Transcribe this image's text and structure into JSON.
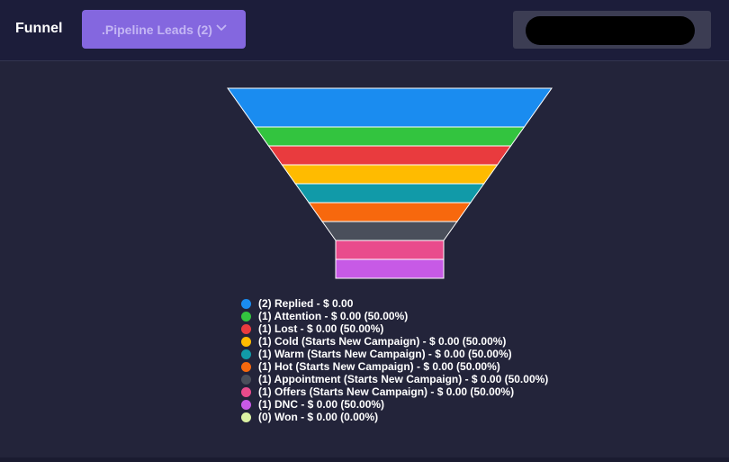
{
  "header": {
    "title": "Funnel",
    "pipeline_label": ".Pipeline Leads (2)"
  },
  "chart_data": {
    "type": "funnel",
    "series": [
      {
        "name": "Replied",
        "count": 2,
        "value": 0.0,
        "legend": "(2) Replied - $ 0.00",
        "color": "#1a8cf0"
      },
      {
        "name": "Attention",
        "count": 1,
        "value": 0.0,
        "legend": "(1) Attention - $ 0.00 (50.00%)",
        "color": "#33c43f"
      },
      {
        "name": "Lost",
        "count": 1,
        "value": 0.0,
        "legend": "(1) Lost - $ 0.00 (50.00%)",
        "color": "#e93b3e"
      },
      {
        "name": "Cold (Starts New Campaign)",
        "count": 1,
        "value": 0.0,
        "legend": "(1) Cold (Starts New Campaign) - $ 0.00 (50.00%)",
        "color": "#ffbb00"
      },
      {
        "name": "Warm (Starts New Campaign)",
        "count": 1,
        "value": 0.0,
        "legend": "(1) Warm (Starts New Campaign) - $ 0.00 (50.00%)",
        "color": "#119aa8"
      },
      {
        "name": "Hot (Starts New Campaign)",
        "count": 1,
        "value": 0.0,
        "legend": "(1) Hot (Starts New Campaign) - $ 0.00 (50.00%)",
        "color": "#f7680d"
      },
      {
        "name": "Appointment (Starts New Campaign)",
        "count": 1,
        "value": 0.0,
        "legend": "(1) Appointment (Starts New Campaign) - $ 0.00 (50.00%)",
        "color": "#4a4f5b"
      },
      {
        "name": "Offers (Starts New Campaign)",
        "count": 1,
        "value": 0.0,
        "legend": "(1) Offers (Starts New Campaign) - $ 0.00 (50.00%)",
        "color": "#e94b8c"
      },
      {
        "name": "DNC",
        "count": 1,
        "value": 0.0,
        "legend": "(1) DNC - $ 0.00 (50.00%)",
        "color": "#c75ae6"
      },
      {
        "name": "Won",
        "count": 0,
        "value": 0.0,
        "legend": "(0) Won - $ 0.00 (0.00%)",
        "color": "#dbf2a3"
      }
    ]
  }
}
